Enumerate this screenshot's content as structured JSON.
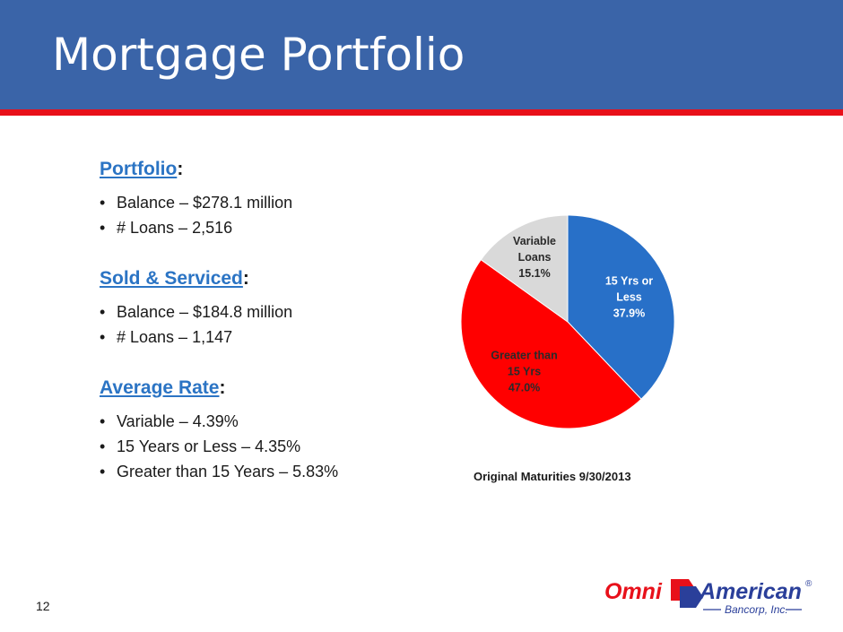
{
  "slide": {
    "title": "Mortgage Portfolio",
    "page_number": "12"
  },
  "sections": [
    {
      "heading": "Portfolio",
      "colon": ":",
      "bullets": [
        "Balance – $278.1 million",
        "# Loans – 2,516"
      ]
    },
    {
      "heading": "Sold & Serviced",
      "colon": ":",
      "bullets": [
        "Balance – $184.8 million",
        "# Loans – 1,147"
      ]
    },
    {
      "heading": "Average Rate",
      "colon": ":",
      "bullets": [
        "Variable – 4.39%",
        "15 Years or Less – 4.35%",
        "Greater than 15 Years – 5.83%"
      ]
    }
  ],
  "chart_data": {
    "type": "pie",
    "title": "Original Maturities 9/30/2013",
    "slices": [
      {
        "label_lines": [
          "15 Yrs or",
          "Less",
          "37.9%"
        ],
        "value": 37.9,
        "color": "#2870c8",
        "text_color": "#ffffff"
      },
      {
        "label_lines": [
          "Greater than",
          "15 Yrs",
          "47.0%"
        ],
        "value": 47.0,
        "color": "#ff0000",
        "text_color": "#2a2a2a"
      },
      {
        "label_lines": [
          "Variable",
          "Loans",
          "15.1%"
        ],
        "value": 15.1,
        "color": "#d9d9d9",
        "text_color": "#2a2a2a"
      }
    ]
  },
  "logo": {
    "name_part1": "Omni",
    "name_part2": "American",
    "subtitle": "Bancorp, Inc.",
    "registered": "®",
    "colors": {
      "red": "#e8101a",
      "blue": "#2a3f9a"
    }
  }
}
